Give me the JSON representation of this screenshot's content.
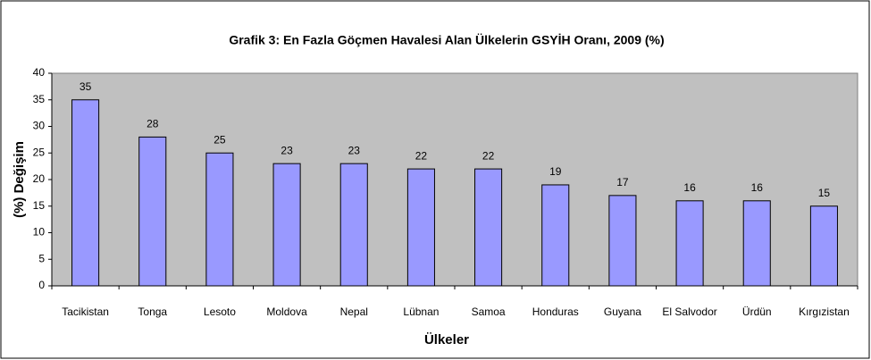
{
  "chart_data": {
    "type": "bar",
    "title": "Grafik 3: En Fazla Göçmen Havalesi Alan Ülkelerin GSYİH Oranı, 2009 (%)",
    "x_label": "Ülkeler",
    "y_label": "(%) Değişim",
    "categories": [
      "Tacikistan",
      "Tonga",
      "Lesoto",
      "Moldova",
      "Nepal",
      "Lübnan",
      "Samoa",
      "Honduras",
      "Guyana",
      "El Salvodor",
      "Ürdün",
      "Kırgızistan"
    ],
    "values": [
      35,
      28,
      25,
      23,
      23,
      22,
      22,
      19,
      17,
      16,
      16,
      15
    ],
    "color": "#9999ff",
    "ylim": [
      0,
      40
    ],
    "yticks": [
      0,
      5,
      10,
      15,
      20,
      25,
      30,
      35,
      40
    ],
    "grid": false
  }
}
